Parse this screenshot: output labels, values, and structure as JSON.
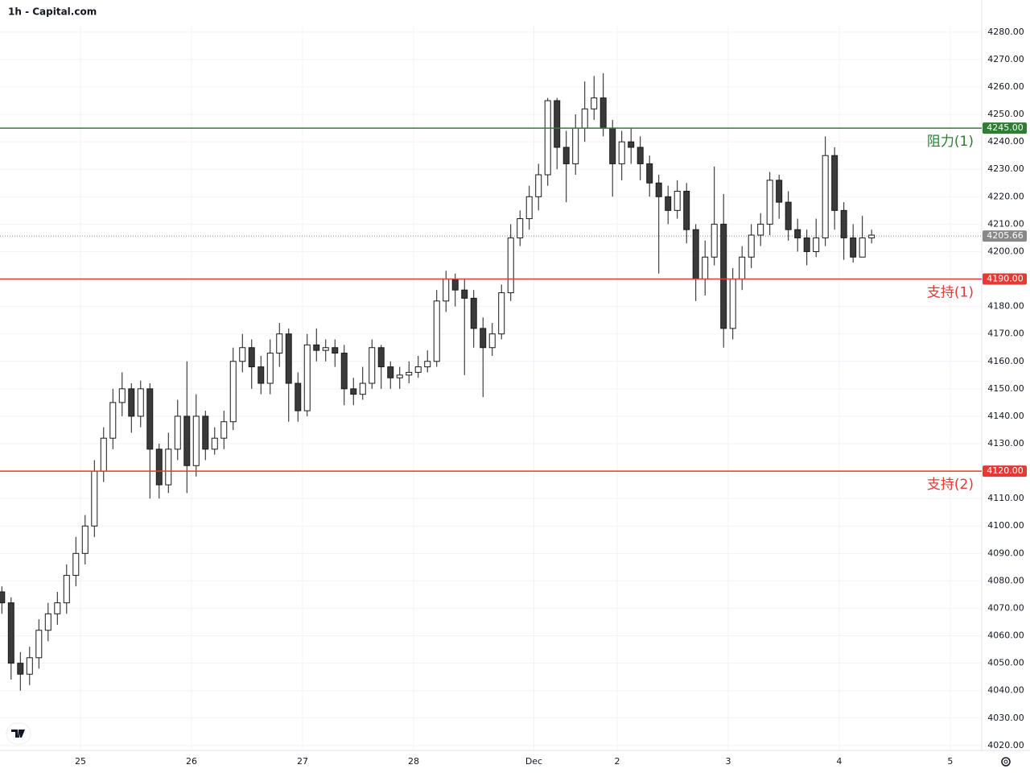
{
  "chart_data": {
    "type": "candlestick",
    "title": "1h - Capital.com",
    "x": [
      -17,
      -15,
      -13,
      -11,
      -9,
      -7,
      -5,
      -3,
      -1,
      1,
      3,
      5,
      7,
      9,
      11,
      13,
      15,
      17,
      19,
      21,
      23,
      25,
      27,
      29,
      31,
      33,
      35,
      37,
      39,
      41,
      43,
      45,
      47,
      49,
      51,
      53,
      55,
      57,
      59,
      61,
      63,
      65,
      67,
      69,
      71,
      73,
      75,
      77,
      79,
      81,
      83,
      85,
      87,
      89,
      91,
      93,
      95,
      97,
      99,
      101,
      103,
      105,
      107,
      109,
      111,
      113,
      115,
      117,
      119,
      121,
      123,
      125,
      127,
      129,
      131,
      133,
      135,
      137,
      139,
      141,
      143,
      145,
      147,
      149,
      151,
      153,
      155,
      157,
      159,
      161,
      163,
      165,
      167,
      169,
      171
    ],
    "open": [
      4076,
      4072,
      4050,
      4046,
      4052,
      4062,
      4068,
      4072,
      4082,
      4090,
      4100,
      4120,
      4132,
      4145,
      4150,
      4140,
      4150,
      4128,
      4115,
      4128,
      4140,
      4122,
      4140,
      4128,
      4132,
      4138,
      4160,
      4165,
      4158,
      4152,
      4163,
      4170,
      4152,
      4142,
      4166,
      4164,
      4165,
      4163,
      4150,
      4148,
      4152,
      4165,
      4158,
      4154,
      4155,
      4156,
      4158,
      4160,
      4182,
      4190,
      4186,
      4183,
      4172,
      4165,
      4170,
      4185,
      4205,
      4212,
      4220,
      4228,
      4255,
      4238,
      4232,
      4245,
      4252,
      4256,
      4245,
      4232,
      4240,
      4238,
      4232,
      4225,
      4220,
      4215,
      4222,
      4208,
      4190,
      4198,
      4210,
      4172,
      4190,
      4198,
      4206,
      4210,
      4226,
      4218,
      4208,
      4205,
      4200,
      4205,
      4235,
      4215,
      4205,
      4198,
      4205
    ],
    "high": [
      4078,
      4074,
      4054,
      4056,
      4066,
      4072,
      4076,
      4086,
      4096,
      4104,
      4124,
      4136,
      4150,
      4156,
      4152,
      4153,
      4152,
      4130,
      4134,
      4146,
      4160,
      4148,
      4142,
      4136,
      4142,
      4165,
      4170,
      4168,
      4162,
      4168,
      4174,
      4172,
      4156,
      4170,
      4172,
      4168,
      4168,
      4166,
      4154,
      4158,
      4168,
      4166,
      4160,
      4158,
      4160,
      4162,
      4164,
      4186,
      4193,
      4192,
      4190,
      4186,
      4176,
      4174,
      4188,
      4210,
      4215,
      4224,
      4232,
      4256,
      4256,
      4244,
      4250,
      4262,
      4264,
      4265,
      4248,
      4244,
      4245,
      4242,
      4235,
      4228,
      4224,
      4226,
      4225,
      4210,
      4204,
      4231,
      4221,
      4194,
      4202,
      4210,
      4214,
      4229,
      4228,
      4222,
      4212,
      4208,
      4212,
      4242,
      4238,
      4218,
      4210,
      4213,
      4208
    ],
    "low": [
      4068,
      4044,
      4040,
      4042,
      4048,
      4058,
      4064,
      4068,
      4078,
      4086,
      4096,
      4116,
      4128,
      4140,
      4134,
      4136,
      4110,
      4110,
      4112,
      4124,
      4112,
      4118,
      4124,
      4126,
      4128,
      4135,
      4156,
      4150,
      4148,
      4148,
      4158,
      4138,
      4138,
      4140,
      4160,
      4160,
      4158,
      4144,
      4144,
      4146,
      4150,
      4150,
      4150,
      4150,
      4152,
      4154,
      4156,
      4158,
      4178,
      4180,
      4155,
      4165,
      4147,
      4162,
      4168,
      4182,
      4202,
      4208,
      4215,
      4224,
      4230,
      4218,
      4228,
      4240,
      4248,
      4242,
      4220,
      4226,
      4232,
      4226,
      4220,
      4192,
      4210,
      4212,
      4203,
      4182,
      4184,
      4195,
      4165,
      4168,
      4186,
      4194,
      4202,
      4206,
      4212,
      4204,
      4200,
      4195,
      4198,
      4202,
      4208,
      4197,
      4196,
      4198,
      4203
    ],
    "close": [
      4072,
      4050,
      4046,
      4052,
      4062,
      4068,
      4072,
      4082,
      4090,
      4100,
      4120,
      4132,
      4145,
      4150,
      4140,
      4150,
      4128,
      4115,
      4128,
      4140,
      4122,
      4140,
      4128,
      4132,
      4138,
      4160,
      4165,
      4158,
      4152,
      4163,
      4170,
      4152,
      4142,
      4166,
      4164,
      4165,
      4163,
      4150,
      4148,
      4152,
      4165,
      4158,
      4154,
      4155,
      4156,
      4158,
      4160,
      4182,
      4190,
      4186,
      4183,
      4172,
      4165,
      4170,
      4185,
      4205,
      4212,
      4220,
      4228,
      4255,
      4238,
      4232,
      4245,
      4252,
      4256,
      4245,
      4232,
      4240,
      4238,
      4232,
      4225,
      4220,
      4215,
      4222,
      4208,
      4190,
      4198,
      4210,
      4172,
      4190,
      4198,
      4206,
      4210,
      4226,
      4218,
      4208,
      4205,
      4200,
      4205,
      4235,
      4215,
      4205,
      4198,
      4205,
      4206
    ],
    "up_color": "#ffffff",
    "down_color": "#3a3a3a",
    "border_color": "#1a1a1a",
    "xlim": [
      -17.4,
      194.8
    ],
    "xticks": [
      {
        "value": 0,
        "label": "25"
      },
      {
        "value": 24,
        "label": "26"
      },
      {
        "value": 48,
        "label": "27"
      },
      {
        "value": 72,
        "label": "28"
      },
      {
        "value": 98,
        "label": "Dec"
      },
      {
        "value": 116,
        "label": "2"
      },
      {
        "value": 140,
        "label": "3"
      },
      {
        "value": 164,
        "label": "4"
      },
      {
        "value": 188,
        "label": "5"
      }
    ],
    "ylim": [
      4018.2,
      4282.3
    ],
    "yticks": [
      {
        "value": 4020,
        "label": "4020.00"
      },
      {
        "value": 4030,
        "label": "4030.00"
      },
      {
        "value": 4040,
        "label": "4040.00"
      },
      {
        "value": 4050,
        "label": "4050.00"
      },
      {
        "value": 4060,
        "label": "4060.00"
      },
      {
        "value": 4070,
        "label": "4070.00"
      },
      {
        "value": 4080,
        "label": "4080.00"
      },
      {
        "value": 4090,
        "label": "4090.00"
      },
      {
        "value": 4100,
        "label": "4100.00"
      },
      {
        "value": 4110,
        "label": "4110.00"
      },
      {
        "value": 4120,
        "label": "4120.00"
      },
      {
        "value": 4130,
        "label": "4130.00"
      },
      {
        "value": 4140,
        "label": "4140.00"
      },
      {
        "value": 4150,
        "label": "4150.00"
      },
      {
        "value": 4160,
        "label": "4160.00"
      },
      {
        "value": 4170,
        "label": "4170.00"
      },
      {
        "value": 4180,
        "label": "4180.00"
      },
      {
        "value": 4190,
        "label": "4190.00"
      },
      {
        "value": 4200,
        "label": "4200.00"
      },
      {
        "value": 4210,
        "label": "4210.00"
      },
      {
        "value": 4220,
        "label": "4220.00"
      },
      {
        "value": 4230,
        "label": "4230.00"
      },
      {
        "value": 4240,
        "label": "4240.00"
      },
      {
        "value": 4250,
        "label": "4250.00"
      },
      {
        "value": 4260,
        "label": "4260.00"
      },
      {
        "value": 4270,
        "label": "4270.00"
      },
      {
        "value": 4280,
        "label": "4280.00"
      }
    ],
    "grid": true,
    "levels": [
      {
        "value": 4245,
        "label": "4245.00",
        "name": "阻力(1)",
        "color": "#2e7d32"
      },
      {
        "value": 4190,
        "label": "4190.00",
        "name": "支持(1)",
        "color": "#e53935"
      },
      {
        "value": 4120,
        "label": "4120.00",
        "name": "支持(2)",
        "color": "#e53935"
      }
    ],
    "last_price": 4205.66,
    "last_price_color": "#888888"
  }
}
